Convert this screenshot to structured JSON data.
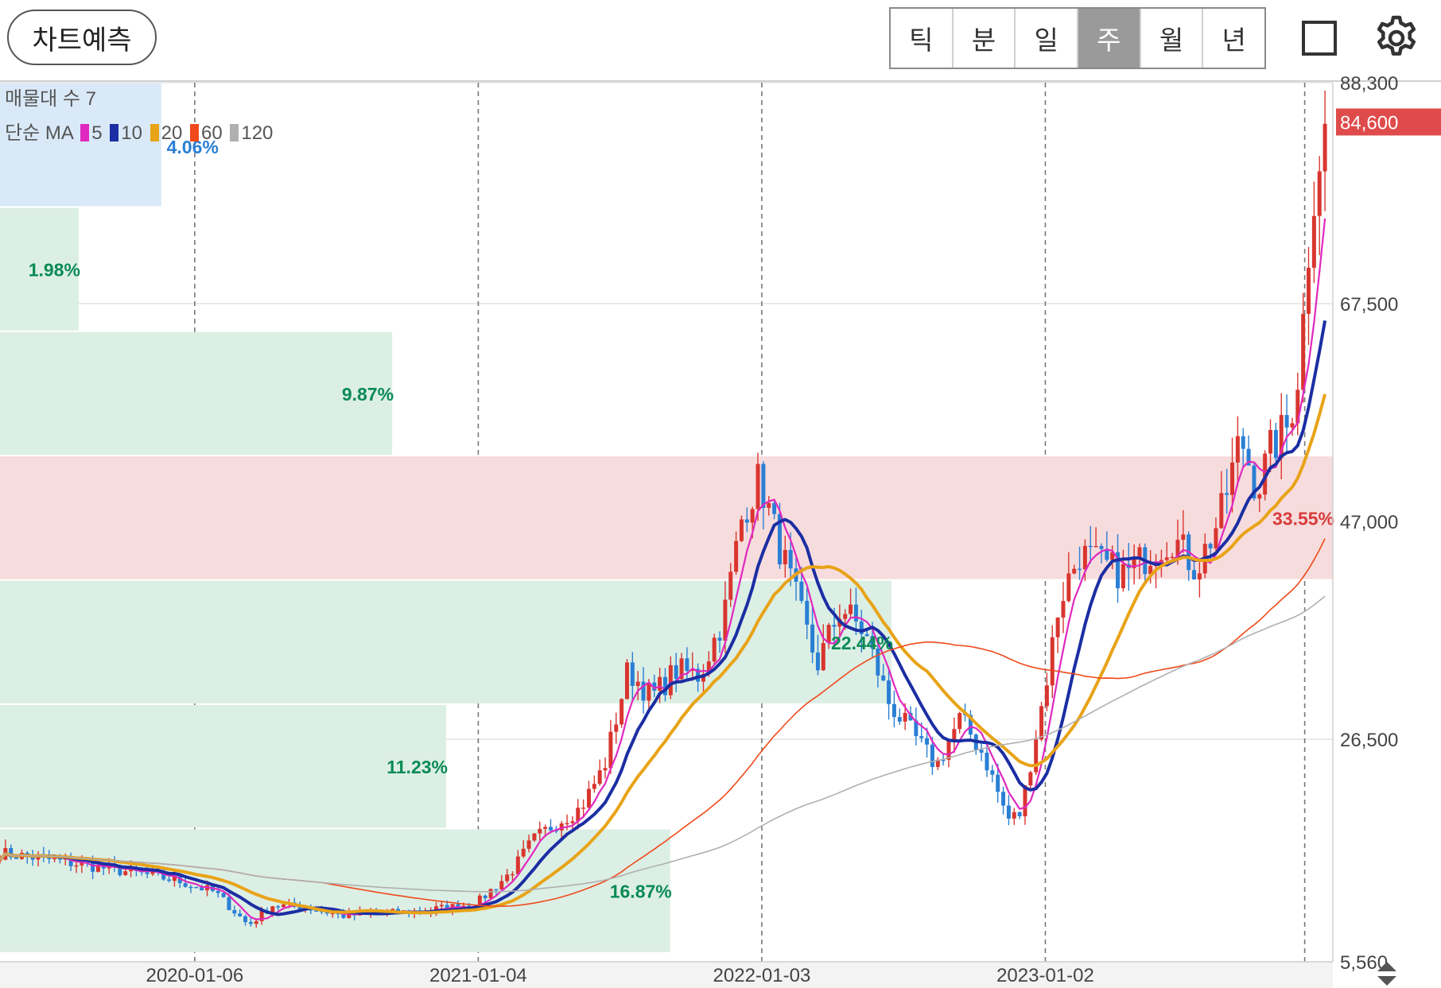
{
  "toolbar": {
    "predict_label": "차트예측",
    "periods": [
      "틱",
      "분",
      "일",
      "주",
      "월",
      "년"
    ],
    "active_period": "주"
  },
  "legend": {
    "volume_profile": "매물대 수 7",
    "ma_prefix": "단순 MA",
    "ma": [
      {
        "label": "5",
        "color": "#e028c0"
      },
      {
        "label": "10",
        "color": "#1b2ea3"
      },
      {
        "label": "20",
        "color": "#e8a317"
      },
      {
        "label": "60",
        "color": "#f04a1a"
      },
      {
        "label": "120",
        "color": "#b0b0b0"
      }
    ]
  },
  "colors": {
    "up": "#d9352f",
    "down": "#2a7fd4",
    "profile_green": "#dcefe5",
    "profile_red": "#f7dcdd",
    "profile_blue": "#d9e9f8",
    "pct_green": "#0a8a55",
    "pct_red": "#d83a3a",
    "pct_blue": "#2a7fd4",
    "current_price_bg": "#df4b4b"
  },
  "chart_data": {
    "type": "candlestick",
    "y_ticks": [
      88300,
      67500,
      47000,
      26500,
      5560
    ],
    "y_range": [
      5560,
      88300
    ],
    "current_price": 84600,
    "x_ticks": [
      "2020-01-06",
      "2021-01-04",
      "2022-01-03",
      "2023-01-02"
    ],
    "x_range": [
      "2019-05-01",
      "2023-12-31"
    ],
    "volume_profile": [
      {
        "low": 76600,
        "high": 88300,
        "pct": "4.06%",
        "tone": "blue"
      },
      {
        "low": 64900,
        "high": 76600,
        "pct": "1.98%",
        "tone": "green"
      },
      {
        "low": 53200,
        "high": 64900,
        "pct": "9.87%",
        "tone": "green"
      },
      {
        "low": 41500,
        "high": 53200,
        "pct": "33.55%",
        "tone": "red"
      },
      {
        "low": 29800,
        "high": 41500,
        "pct": "22.44%",
        "tone": "green"
      },
      {
        "low": 18100,
        "high": 29800,
        "pct": "11.23%",
        "tone": "green"
      },
      {
        "low": 6400,
        "high": 18100,
        "pct": "16.87%",
        "tone": "green"
      }
    ],
    "price_path": [
      [
        "2019-05-01",
        15800
      ],
      [
        "2019-07-01",
        15200
      ],
      [
        "2019-09-01",
        14500
      ],
      [
        "2019-11-01",
        13800
      ],
      [
        "2019-12-15",
        13200
      ],
      [
        "2020-02-01",
        12100
      ],
      [
        "2020-03-15",
        9000
      ],
      [
        "2020-04-15",
        10900
      ],
      [
        "2020-06-01",
        10600
      ],
      [
        "2020-07-15",
        9900
      ],
      [
        "2020-09-01",
        10100
      ],
      [
        "2020-10-15",
        10300
      ],
      [
        "2020-12-01",
        10700
      ],
      [
        "2021-01-04",
        11200
      ],
      [
        "2021-02-15",
        14000
      ],
      [
        "2021-03-15",
        17000
      ],
      [
        "2021-04-15",
        18700
      ],
      [
        "2021-05-15",
        20000
      ],
      [
        "2021-06-15",
        24000
      ],
      [
        "2021-07-15",
        33000
      ],
      [
        "2021-08-15",
        30500
      ],
      [
        "2021-09-15",
        33000
      ],
      [
        "2021-10-15",
        32500
      ],
      [
        "2021-11-15",
        38000
      ],
      [
        "2021-12-10",
        48000
      ],
      [
        "2021-12-31",
        51000
      ],
      [
        "2022-01-20",
        46000
      ],
      [
        "2022-02-15",
        40000
      ],
      [
        "2022-03-15",
        33500
      ],
      [
        "2022-04-15",
        39000
      ],
      [
        "2022-05-15",
        36500
      ],
      [
        "2022-06-15",
        30000
      ],
      [
        "2022-07-15",
        27000
      ],
      [
        "2022-08-15",
        24000
      ],
      [
        "2022-09-15",
        28500
      ],
      [
        "2022-10-15",
        25000
      ],
      [
        "2022-11-15",
        19000
      ],
      [
        "2022-12-01",
        19500
      ],
      [
        "2023-01-01",
        31000
      ],
      [
        "2023-01-20",
        39500
      ],
      [
        "2023-02-15",
        44000
      ],
      [
        "2023-03-15",
        43000
      ],
      [
        "2023-04-15",
        42000
      ],
      [
        "2023-05-15",
        44000
      ],
      [
        "2023-06-15",
        45500
      ],
      [
        "2023-07-15",
        42500
      ],
      [
        "2023-08-15",
        47500
      ],
      [
        "2023-09-10",
        55000
      ],
      [
        "2023-10-01",
        50000
      ],
      [
        "2023-10-20",
        54000
      ],
      [
        "2023-11-10",
        56000
      ],
      [
        "2023-11-25",
        62000
      ],
      [
        "2023-12-05",
        72000
      ],
      [
        "2023-12-15",
        80000
      ],
      [
        "2023-12-31",
        84600
      ]
    ]
  }
}
